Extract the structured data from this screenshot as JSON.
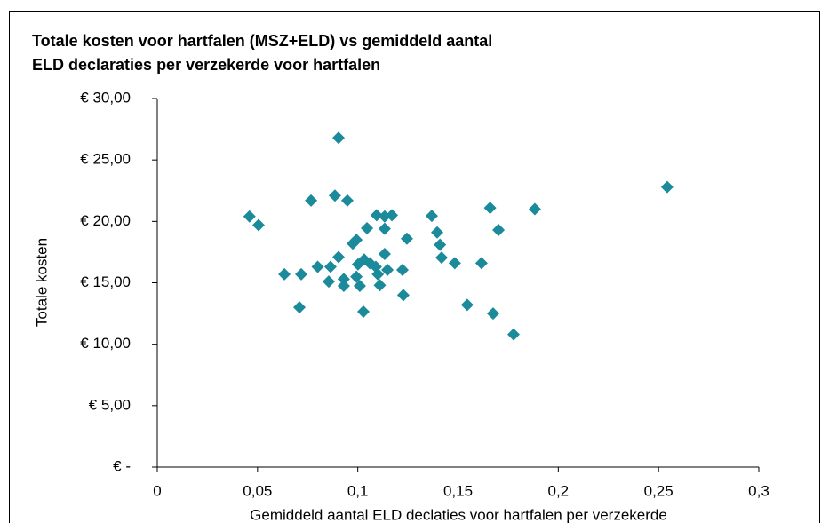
{
  "chart_data": {
    "type": "scatter",
    "title": [
      "Totale kosten voor hartfalen (MSZ+ELD) vs gemiddeld  aantal",
      "ELD declaraties per verzekerde voor hartfalen"
    ],
    "x_label": "Gemiddeld aantal ELD declaties voor hartfalen per verzekerde",
    "y_label": "Totale kosten",
    "color": "#1b8a9a",
    "grid": false,
    "xlim": [
      0,
      0.3
    ],
    "ylim": [
      0,
      30
    ],
    "xticks": [
      0,
      {
        "value": 0.05,
        "label": "0,05"
      },
      {
        "value": 0.1,
        "label": "0,1"
      },
      {
        "value": 0.15,
        "label": "0,15"
      },
      {
        "value": 0.2,
        "label": "0,2"
      },
      {
        "value": 0.25,
        "label": "0,25"
      },
      {
        "value": 0.3,
        "label": "0,3"
      }
    ],
    "yticks": [
      {
        "value": 0,
        "label": "€ -"
      },
      {
        "value": 5,
        "label": "€ 5,00"
      },
      {
        "value": 10,
        "label": "€ 10,00"
      },
      {
        "value": 15,
        "label": "€ 15,00"
      },
      {
        "value": 20,
        "label": "€ 20,00"
      },
      {
        "value": 25,
        "label": "€ 25,00"
      },
      {
        "value": 30,
        "label": "€ 30,00"
      }
    ],
    "x": [
      0.046,
      0.0505,
      0.0634,
      0.0718,
      0.0709,
      0.0767,
      0.08,
      0.0855,
      0.0864,
      0.0886,
      0.0904,
      0.0904,
      0.093,
      0.093,
      0.0948,
      0.0975,
      0.0993,
      0.0993,
      0.1001,
      0.101,
      0.1028,
      0.1032,
      0.1046,
      0.106,
      0.1094,
      0.109,
      0.11,
      0.111,
      0.1134,
      0.1134,
      0.1134,
      0.1148,
      0.117,
      0.1223,
      0.1227,
      0.1245,
      0.1369,
      0.1396,
      0.141,
      0.1418,
      0.1484,
      0.1546,
      0.1617,
      0.166,
      0.1675,
      0.1702,
      0.1777,
      0.1883,
      0.2543
    ],
    "values": [
      20.4,
      19.7,
      15.7,
      15.7,
      13.0,
      21.7,
      16.3,
      15.1,
      16.3,
      22.1,
      17.1,
      26.8,
      15.3,
      14.75,
      21.7,
      18.2,
      18.5,
      15.5,
      16.5,
      14.75,
      12.65,
      16.9,
      19.45,
      16.6,
      20.5,
      16.3,
      15.7,
      14.8,
      17.35,
      19.4,
      20.4,
      16.05,
      20.5,
      16.05,
      14.0,
      18.6,
      20.45,
      19.1,
      18.1,
      17.05,
      16.6,
      13.2,
      16.6,
      21.1,
      12.5,
      19.3,
      10.8,
      21.0,
      22.8
    ]
  }
}
